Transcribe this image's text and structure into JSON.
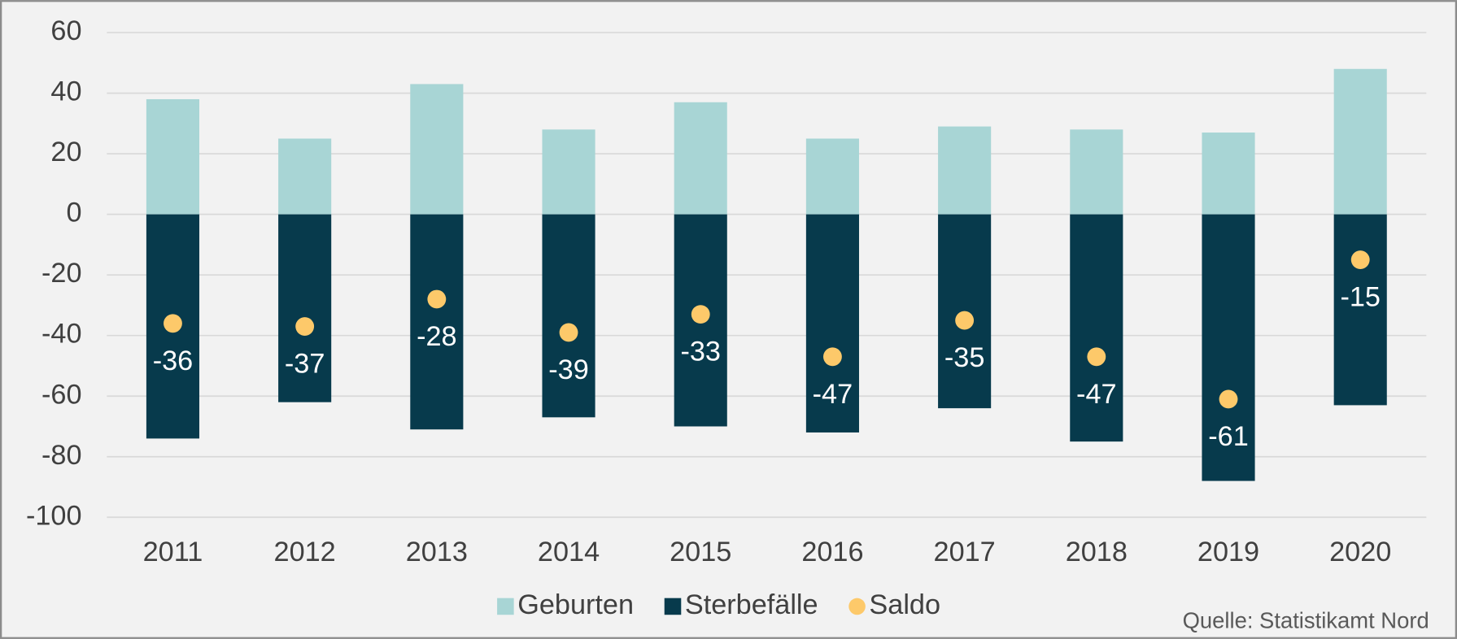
{
  "chart_data": {
    "type": "bar",
    "categories": [
      "2011",
      "2012",
      "2013",
      "2014",
      "2015",
      "2016",
      "2017",
      "2018",
      "2019",
      "2020"
    ],
    "series": [
      {
        "name": "Geburten",
        "color": "#a8d5d5",
        "values": [
          38,
          25,
          43,
          28,
          37,
          25,
          29,
          28,
          27,
          48
        ]
      },
      {
        "name": "Sterbefälle",
        "color": "#073a4c",
        "values": [
          -74,
          -62,
          -71,
          -67,
          -70,
          -72,
          -64,
          -75,
          -88,
          -63
        ]
      },
      {
        "name": "Saldo",
        "color": "#fdc96a",
        "type": "scatter",
        "values": [
          -36,
          -37,
          -28,
          -39,
          -33,
          -47,
          -35,
          -47,
          -61,
          -15
        ]
      }
    ],
    "ylim": [
      -100,
      60
    ],
    "yticks": [
      -100,
      -80,
      -60,
      -40,
      -20,
      0,
      20,
      40,
      60
    ],
    "grid": true,
    "legend": "bottom",
    "source": "Quelle: Statistikamt Nord"
  }
}
